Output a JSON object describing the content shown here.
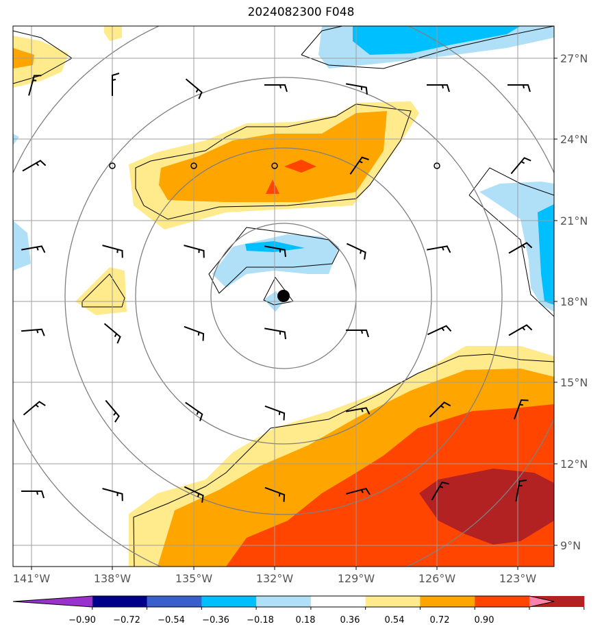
{
  "title": "2024082300 F048",
  "lon_labels": [
    "141°W",
    "138°W",
    "135°W",
    "132°W",
    "129°W",
    "126°W",
    "123°W"
  ],
  "lat_labels": [
    "27°N",
    "24°N",
    "21°N",
    "18°N",
    "15°N",
    "12°N",
    "9°N"
  ],
  "colorbar": {
    "ticks": [
      "−0.90",
      "−0.72",
      "−0.54",
      "−0.36",
      "−0.18",
      "0.18",
      "0.36",
      "0.54",
      "0.72",
      "0.90"
    ],
    "colors": [
      "#9932cc",
      "#00008b",
      "#3a5fcd",
      "#00bfff",
      "#b0e0f8",
      "#ffffff",
      "#ffeb8c",
      "#ffa500",
      "#ff4500",
      "#b22222",
      "#ff82ab"
    ]
  },
  "storm_center": {
    "lon": -131.7,
    "lat": 18.2
  }
}
